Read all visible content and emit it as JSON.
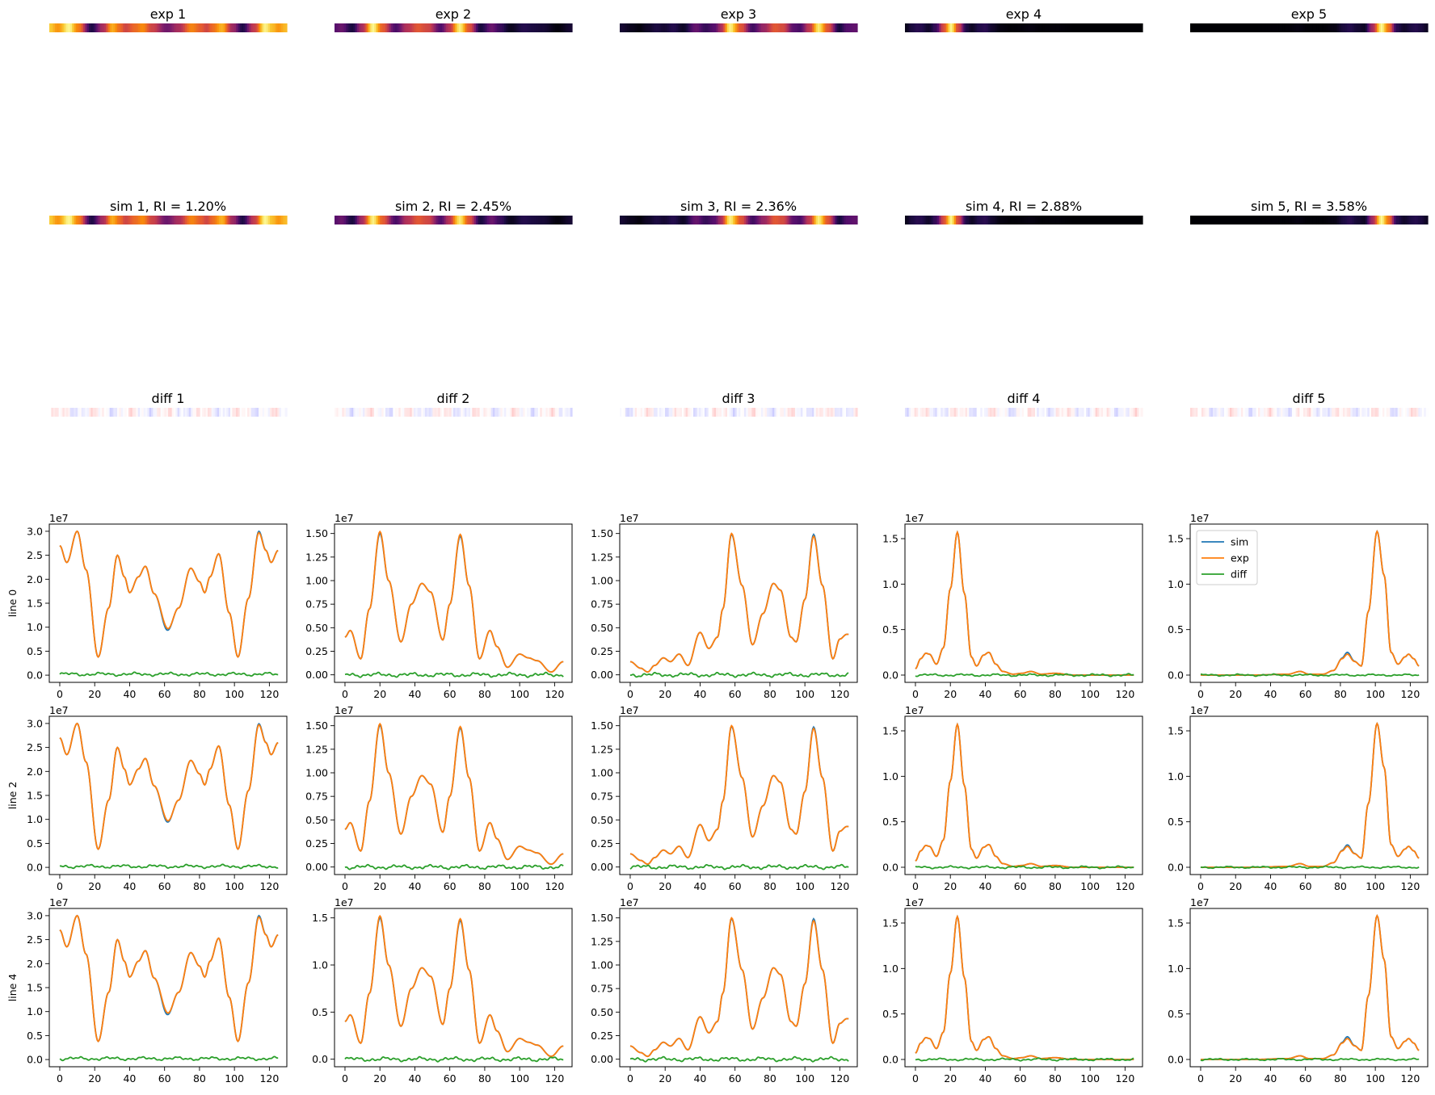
{
  "figure": {
    "columns": 5,
    "x_ticks": [
      0,
      20,
      40,
      60,
      80,
      100,
      120
    ],
    "x_range": [
      -6,
      130
    ],
    "offset_label": "1e7",
    "colors": {
      "sim": "#1f77b4",
      "exp": "#ff7f0e",
      "diff": "#2ca02c",
      "axis": "#000000",
      "text": "#000000"
    }
  },
  "heatmaps": {
    "exp_titles": [
      "exp 1",
      "exp 2",
      "exp 3",
      "exp 4",
      "exp 5"
    ],
    "sim_titles": [
      "sim 1, RI = 1.20%",
      "sim 2, RI = 2.45%",
      "sim 3, RI = 2.36%",
      "sim 4, RI = 2.88%",
      "sim 5, RI = 3.58%"
    ],
    "diff_titles": [
      "diff 1",
      "diff 2",
      "diff 3",
      "diff 4",
      "diff 5"
    ],
    "colormap_intensity": "inferno",
    "colormap_diff": "bwr"
  },
  "chart_data": {
    "type": "line",
    "row_labels": [
      "line 0",
      "line 2",
      "line 4"
    ],
    "legend": {
      "entries": [
        "sim",
        "exp",
        "diff"
      ],
      "placement": "upper-left of column 5, row 1"
    },
    "xlim": [
      -6,
      130
    ],
    "x_ticks": [
      0,
      20,
      40,
      60,
      80,
      100,
      120
    ],
    "columns": [
      {
        "name": "column 1",
        "ylim": [
          -0.15,
          3.15
        ],
        "y_ticks": [
          0.0,
          0.5,
          1.0,
          1.5,
          2.0,
          2.5,
          3.0
        ],
        "y_tick_labels": [
          "0.0",
          "0.5",
          "1.0",
          "1.5",
          "2.0",
          "2.5",
          "3.0"
        ],
        "exp_knots": [
          [
            0,
            2.7
          ],
          [
            4,
            2.35
          ],
          [
            10,
            3.0
          ],
          [
            15,
            2.2
          ],
          [
            22,
            0.38
          ],
          [
            28,
            1.4
          ],
          [
            33,
            2.5
          ],
          [
            37,
            2.05
          ],
          [
            40,
            1.72
          ],
          [
            45,
            2.05
          ],
          [
            49,
            2.27
          ],
          [
            54,
            1.7
          ],
          [
            62,
            0.97
          ],
          [
            68,
            1.4
          ],
          [
            75,
            2.23
          ],
          [
            80,
            1.95
          ],
          [
            83,
            1.72
          ],
          [
            86,
            2.05
          ],
          [
            91,
            2.53
          ],
          [
            97,
            1.3
          ],
          [
            102,
            0.38
          ],
          [
            108,
            1.6
          ],
          [
            114,
            2.97
          ],
          [
            118,
            2.6
          ],
          [
            121,
            2.35
          ],
          [
            125,
            2.6
          ]
        ],
        "sim_delta": [
          [
            60,
            -0.05
          ],
          [
            114,
            0.03
          ]
        ],
        "diff_base": 0.02,
        "diff_amp": 0.04
      },
      {
        "name": "column 2",
        "ylim": [
          -0.08,
          1.6
        ],
        "y_ticks": [
          0.0,
          0.25,
          0.5,
          0.75,
          1.0,
          1.25,
          1.5
        ],
        "y_tick_labels": [
          "0.00",
          "0.25",
          "0.50",
          "0.75",
          "1.00",
          "1.25",
          "1.50"
        ],
        "y_ticks_row3": [
          0.0,
          0.5,
          1.0,
          1.5
        ],
        "y_tick_labels_row3": [
          "0.0",
          "0.5",
          "1.0",
          "1.5"
        ],
        "exp_knots": [
          [
            0,
            0.4
          ],
          [
            3,
            0.47
          ],
          [
            9,
            0.17
          ],
          [
            14,
            0.7
          ],
          [
            20,
            1.52
          ],
          [
            25,
            1.0
          ],
          [
            32,
            0.35
          ],
          [
            38,
            0.75
          ],
          [
            44,
            0.97
          ],
          [
            49,
            0.88
          ],
          [
            56,
            0.37
          ],
          [
            60,
            0.75
          ],
          [
            66,
            1.49
          ],
          [
            71,
            0.95
          ],
          [
            77,
            0.17
          ],
          [
            83,
            0.47
          ],
          [
            87,
            0.3
          ],
          [
            93,
            0.08
          ],
          [
            100,
            0.22
          ],
          [
            105,
            0.18
          ],
          [
            110,
            0.15
          ],
          [
            118,
            0.03
          ],
          [
            125,
            0.14
          ]
        ],
        "sim_delta": [
          [
            20,
            -0.02
          ],
          [
            66,
            -0.02
          ]
        ],
        "diff_base": 0.0,
        "diff_amp": 0.025
      },
      {
        "name": "column 3",
        "ylim": [
          -0.08,
          1.6
        ],
        "y_ticks": [
          0.0,
          0.25,
          0.5,
          0.75,
          1.0,
          1.25,
          1.5
        ],
        "y_tick_labels": [
          "0.00",
          "0.25",
          "0.50",
          "0.75",
          "1.00",
          "1.25",
          "1.50"
        ],
        "exp_knots": [
          [
            0,
            0.14
          ],
          [
            6,
            0.07
          ],
          [
            10,
            0.03
          ],
          [
            14,
            0.1
          ],
          [
            19,
            0.18
          ],
          [
            23,
            0.14
          ],
          [
            28,
            0.22
          ],
          [
            33,
            0.1
          ],
          [
            40,
            0.45
          ],
          [
            45,
            0.28
          ],
          [
            50,
            0.4
          ],
          [
            53,
            0.7
          ],
          [
            58,
            1.5
          ],
          [
            64,
            0.95
          ],
          [
            70,
            0.32
          ],
          [
            76,
            0.65
          ],
          [
            82,
            0.97
          ],
          [
            86,
            0.9
          ],
          [
            92,
            0.4
          ],
          [
            95,
            0.35
          ],
          [
            100,
            0.8
          ],
          [
            105,
            1.47
          ],
          [
            110,
            0.95
          ],
          [
            116,
            0.17
          ],
          [
            120,
            0.38
          ],
          [
            124,
            0.43
          ]
        ],
        "sim_delta": [
          [
            58,
            -0.01
          ],
          [
            105,
            0.02
          ]
        ],
        "diff_base": 0.0,
        "diff_amp": 0.025
      },
      {
        "name": "column 4",
        "ylim": [
          -0.08,
          1.66
        ],
        "y_ticks": [
          0.0,
          0.5,
          1.0,
          1.5
        ],
        "y_tick_labels": [
          "0.0",
          "0.5",
          "1.0",
          "1.5"
        ],
        "exp_knots": [
          [
            0,
            0.07
          ],
          [
            3,
            0.18
          ],
          [
            6,
            0.24
          ],
          [
            8,
            0.23
          ],
          [
            12,
            0.12
          ],
          [
            16,
            0.3
          ],
          [
            20,
            0.95
          ],
          [
            24,
            1.57
          ],
          [
            28,
            0.9
          ],
          [
            32,
            0.2
          ],
          [
            35,
            0.1
          ],
          [
            39,
            0.22
          ],
          [
            42,
            0.25
          ],
          [
            46,
            0.12
          ],
          [
            50,
            0.04
          ],
          [
            56,
            0.01
          ],
          [
            61,
            0.02
          ],
          [
            66,
            0.04
          ],
          [
            72,
            0.01
          ],
          [
            80,
            0.02
          ],
          [
            90,
            0.0
          ],
          [
            125,
            0.0
          ]
        ],
        "sim_delta": [
          [
            24,
            0.0
          ]
        ],
        "diff_base": 0.0,
        "diff_amp": 0.015
      },
      {
        "name": "column 5",
        "ylim": [
          -0.08,
          1.66
        ],
        "y_ticks": [
          0.0,
          0.5,
          1.0,
          1.5
        ],
        "y_tick_labels": [
          "0.0",
          "0.5",
          "1.0",
          "1.5"
        ],
        "exp_knots": [
          [
            0,
            0.0
          ],
          [
            30,
            0.0
          ],
          [
            50,
            0.01
          ],
          [
            57,
            0.04
          ],
          [
            62,
            0.01
          ],
          [
            70,
            0.01
          ],
          [
            76,
            0.05
          ],
          [
            81,
            0.18
          ],
          [
            84,
            0.23
          ],
          [
            88,
            0.15
          ],
          [
            92,
            0.1
          ],
          [
            96,
            0.7
          ],
          [
            101,
            1.58
          ],
          [
            105,
            1.1
          ],
          [
            109,
            0.25
          ],
          [
            113,
            0.12
          ],
          [
            117,
            0.2
          ],
          [
            119,
            0.23
          ],
          [
            122,
            0.18
          ],
          [
            125,
            0.1
          ]
        ],
        "sim_delta": [
          [
            84,
            0.02
          ]
        ],
        "diff_base": 0.0,
        "diff_amp": 0.012
      }
    ]
  }
}
